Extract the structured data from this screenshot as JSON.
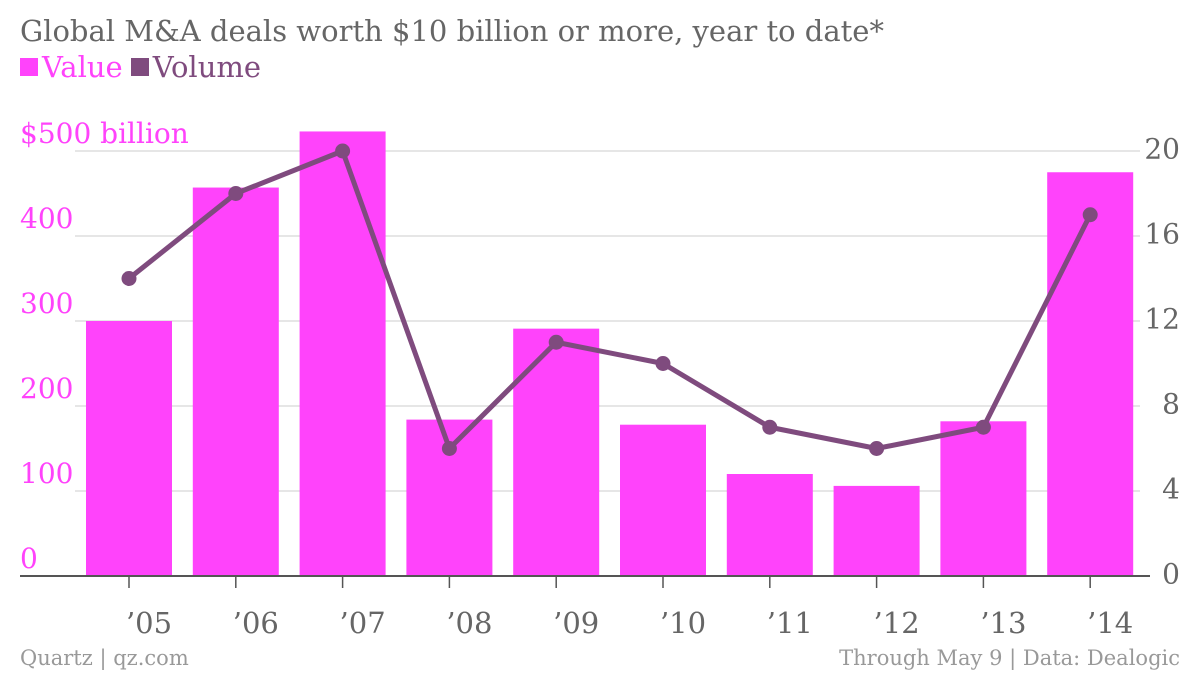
{
  "chart_data": {
    "type": "bar",
    "title": "Global M&A deals worth $10 billion or more, year to date*",
    "categories": [
      "’05",
      "’06",
      "’07",
      "’08",
      "’09",
      "’10",
      "’11",
      "’12",
      "’13",
      "’14"
    ],
    "series": [
      {
        "name": "Value",
        "type": "bar",
        "axis": "left",
        "color": "#ff43fb",
        "values": [
          300,
          457,
          523,
          184,
          291,
          178,
          120,
          106,
          182,
          475
        ]
      },
      {
        "name": "Volume",
        "type": "line",
        "axis": "right",
        "color": "#7f4b7e",
        "values": [
          14,
          18,
          20,
          6,
          11,
          10,
          7,
          6,
          7,
          17
        ]
      }
    ],
    "left_axis": {
      "ylim": [
        0,
        500
      ],
      "ticks": [
        0,
        100,
        200,
        300,
        400,
        500
      ],
      "tick_labels": [
        "0",
        "100",
        "200",
        "300",
        "400",
        "$500 billion"
      ],
      "color": "#ff43fb"
    },
    "right_axis": {
      "ylim": [
        0,
        20
      ],
      "ticks": [
        0,
        4,
        8,
        12,
        16,
        20
      ],
      "tick_labels": [
        "0",
        "4",
        "8",
        "12",
        "16",
        "20"
      ],
      "color": "#666666"
    },
    "grid": true,
    "legend_position": "top-left"
  },
  "footer": {
    "left": "Quartz | qz.com",
    "right": "Through May 9 | Data: Dealogic"
  },
  "colors": {
    "title": "#666666",
    "grid": "#dddddd",
    "axis": "#555555",
    "tick_text": "#666666"
  }
}
